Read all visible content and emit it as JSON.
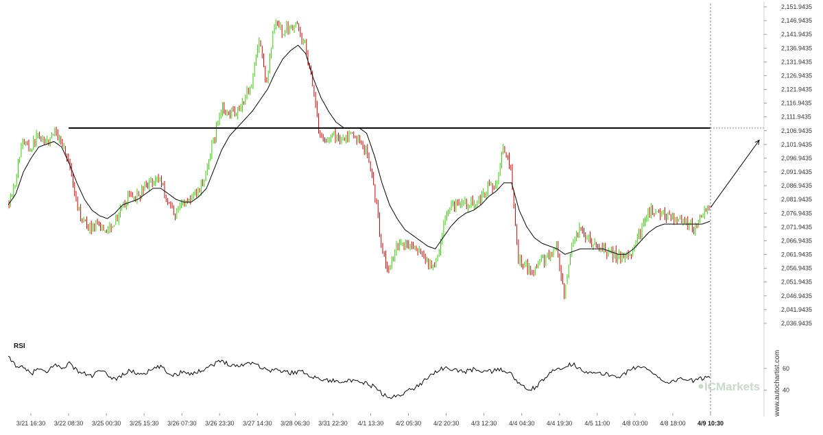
{
  "chart_data": [
    {
      "type": "candlestick",
      "y_axis_ticks": [
        "2,151.9435",
        "2,146.9435",
        "2,141.9435",
        "2,136.9435",
        "2,131.9435",
        "2,126.9435",
        "2,121.9435",
        "2,116.9435",
        "2,111.9435",
        "2,106.9435",
        "2,101.9435",
        "2,096.9435",
        "2,091.9435",
        "2,086.9435",
        "2,081.9435",
        "2,076.9435",
        "2,071.9435",
        "2,066.9435",
        "2,061.9435",
        "2,056.9435",
        "2,051.9435",
        "2,046.9435",
        "2,041.9435",
        "2,036.9435"
      ],
      "ylim": [
        2034.9435,
        2152.4435
      ],
      "x_axis_ticks": [
        "3/21 16:30",
        "3/22 08:30",
        "3/25 00:30",
        "3/25 15:30",
        "3/26 07:30",
        "3/26 23:30",
        "3/27 14:30",
        "3/28 06:30",
        "3/31 22:30",
        "4/1 13:30",
        "4/2 05:30",
        "4/2 20:30",
        "4/3 12:30",
        "4/4 04:30",
        "4/4 19:30",
        "4/5 11:00",
        "4/8 03:00",
        "4/8 18:00",
        "4/9 10:30"
      ],
      "x_axis_current": "4/9 10:30",
      "resistance_level": 2107.9,
      "projection": {
        "from": 2079.0,
        "to": 2103.5
      },
      "up_color": "#33cc00",
      "down_color": "#cc0000",
      "ma_color": "#000000",
      "close_path": [
        [
          0,
          2080.0
        ],
        [
          5,
          2088
        ],
        [
          10,
          2104
        ],
        [
          15,
          2100
        ],
        [
          20,
          2106
        ],
        [
          25,
          2102
        ],
        [
          30,
          2106
        ],
        [
          35,
          2104
        ],
        [
          40,
          2096
        ],
        [
          45,
          2080
        ],
        [
          50,
          2073
        ],
        [
          55,
          2072
        ],
        [
          60,
          2072
        ],
        [
          65,
          2071
        ],
        [
          70,
          2074
        ],
        [
          75,
          2078
        ],
        [
          80,
          2084
        ],
        [
          85,
          2083
        ],
        [
          90,
          2086
        ],
        [
          95,
          2089
        ],
        [
          100,
          2090
        ],
        [
          105,
          2081
        ],
        [
          110,
          2077
        ],
        [
          115,
          2081
        ],
        [
          120,
          2082
        ],
        [
          125,
          2085
        ],
        [
          130,
          2091
        ],
        [
          135,
          2103
        ],
        [
          140,
          2115
        ],
        [
          145,
          2114
        ],
        [
          150,
          2114
        ],
        [
          155,
          2118
        ],
        [
          160,
          2125
        ],
        [
          165,
          2140
        ],
        [
          170,
          2124
        ],
        [
          175,
          2146
        ],
        [
          180,
          2143
        ],
        [
          185,
          2145
        ],
        [
          190,
          2145
        ],
        [
          195,
          2138
        ],
        [
          200,
          2125
        ],
        [
          205,
          2104
        ],
        [
          210,
          2104
        ],
        [
          215,
          2105
        ],
        [
          220,
          2104
        ],
        [
          225,
          2105
        ],
        [
          230,
          2104
        ],
        [
          235,
          2100
        ],
        [
          240,
          2088
        ],
        [
          245,
          2066
        ],
        [
          250,
          2055
        ],
        [
          255,
          2066
        ],
        [
          260,
          2066
        ],
        [
          265,
          2065
        ],
        [
          270,
          2062
        ],
        [
          275,
          2060
        ],
        [
          280,
          2056
        ],
        [
          285,
          2070
        ],
        [
          290,
          2080
        ],
        [
          295,
          2081
        ],
        [
          300,
          2080
        ],
        [
          305,
          2081
        ],
        [
          310,
          2082
        ],
        [
          315,
          2086
        ],
        [
          320,
          2087
        ],
        [
          325,
          2101
        ],
        [
          330,
          2092
        ],
        [
          335,
          2060
        ],
        [
          340,
          2058
        ],
        [
          345,
          2056
        ],
        [
          350,
          2060
        ],
        [
          355,
          2061
        ],
        [
          360,
          2064
        ],
        [
          365,
          2046
        ],
        [
          370,
          2064
        ],
        [
          375,
          2071
        ],
        [
          380,
          2068
        ],
        [
          385,
          2065
        ],
        [
          390,
          2064
        ],
        [
          395,
          2063
        ],
        [
          400,
          2061
        ],
        [
          405,
          2061
        ],
        [
          410,
          2063
        ],
        [
          415,
          2070
        ],
        [
          420,
          2078
        ],
        [
          425,
          2078
        ],
        [
          430,
          2077
        ],
        [
          435,
          2075
        ],
        [
          440,
          2075
        ],
        [
          445,
          2074
        ],
        [
          450,
          2071
        ],
        [
          455,
          2076
        ],
        [
          460,
          2079
        ]
      ],
      "ma_path": [
        [
          0,
          2080.0
        ],
        [
          5,
          2084
        ],
        [
          10,
          2092
        ],
        [
          15,
          2097
        ],
        [
          20,
          2101
        ],
        [
          25,
          2102
        ],
        [
          30,
          2103
        ],
        [
          35,
          2101
        ],
        [
          40,
          2095
        ],
        [
          45,
          2088
        ],
        [
          50,
          2082
        ],
        [
          55,
          2078
        ],
        [
          60,
          2076
        ],
        [
          65,
          2075
        ],
        [
          70,
          2077
        ],
        [
          75,
          2080
        ],
        [
          80,
          2081
        ],
        [
          85,
          2082
        ],
        [
          90,
          2084
        ],
        [
          95,
          2086
        ],
        [
          100,
          2086
        ],
        [
          105,
          2084
        ],
        [
          110,
          2082
        ],
        [
          115,
          2081
        ],
        [
          120,
          2081
        ],
        [
          125,
          2083
        ],
        [
          130,
          2086
        ],
        [
          135,
          2093
        ],
        [
          140,
          2100
        ],
        [
          145,
          2105
        ],
        [
          150,
          2108
        ],
        [
          155,
          2111
        ],
        [
          160,
          2114
        ],
        [
          165,
          2118
        ],
        [
          170,
          2122
        ],
        [
          175,
          2128
        ],
        [
          180,
          2133
        ],
        [
          185,
          2136
        ],
        [
          190,
          2138
        ],
        [
          195,
          2135
        ],
        [
          200,
          2126
        ],
        [
          205,
          2119
        ],
        [
          210,
          2114
        ],
        [
          215,
          2110
        ],
        [
          220,
          2108
        ],
        [
          225,
          2108
        ],
        [
          230,
          2108
        ],
        [
          235,
          2106
        ],
        [
          240,
          2098
        ],
        [
          245,
          2088
        ],
        [
          250,
          2080
        ],
        [
          255,
          2075
        ],
        [
          260,
          2071
        ],
        [
          265,
          2069
        ],
        [
          270,
          2067
        ],
        [
          275,
          2065
        ],
        [
          280,
          2064
        ],
        [
          285,
          2068
        ],
        [
          290,
          2072
        ],
        [
          295,
          2075
        ],
        [
          300,
          2077
        ],
        [
          305,
          2078
        ],
        [
          310,
          2080
        ],
        [
          315,
          2083
        ],
        [
          320,
          2085
        ],
        [
          325,
          2088
        ],
        [
          330,
          2088
        ],
        [
          335,
          2078
        ],
        [
          340,
          2072
        ],
        [
          345,
          2068
        ],
        [
          350,
          2066
        ],
        [
          355,
          2065
        ],
        [
          360,
          2064
        ],
        [
          365,
          2062
        ],
        [
          370,
          2063
        ],
        [
          375,
          2064
        ],
        [
          380,
          2064
        ],
        [
          385,
          2064
        ],
        [
          390,
          2064
        ],
        [
          395,
          2063
        ],
        [
          400,
          2062
        ],
        [
          405,
          2062
        ],
        [
          410,
          2064
        ],
        [
          415,
          2067
        ],
        [
          420,
          2070
        ],
        [
          425,
          2072
        ],
        [
          430,
          2073
        ],
        [
          435,
          2073
        ],
        [
          440,
          2073
        ],
        [
          445,
          2073
        ],
        [
          450,
          2073
        ],
        [
          455,
          2073
        ],
        [
          460,
          2074
        ]
      ]
    },
    {
      "type": "line",
      "title": "RSI",
      "y_axis_ticks": [
        "60",
        "40"
      ],
      "ylim": [
        27,
        75
      ],
      "line_color": "#000000",
      "rsi_path": [
        [
          0,
          70
        ],
        [
          5,
          63
        ],
        [
          10,
          60
        ],
        [
          15,
          55
        ],
        [
          20,
          60
        ],
        [
          25,
          55
        ],
        [
          30,
          64
        ],
        [
          35,
          60
        ],
        [
          40,
          65
        ],
        [
          45,
          58
        ],
        [
          50,
          55
        ],
        [
          55,
          53
        ],
        [
          60,
          58
        ],
        [
          65,
          54
        ],
        [
          70,
          50
        ],
        [
          75,
          54
        ],
        [
          80,
          58
        ],
        [
          85,
          55
        ],
        [
          90,
          56
        ],
        [
          95,
          59
        ],
        [
          100,
          62
        ],
        [
          105,
          55
        ],
        [
          110,
          54
        ],
        [
          115,
          58
        ],
        [
          120,
          55
        ],
        [
          125,
          57
        ],
        [
          130,
          61
        ],
        [
          135,
          64
        ],
        [
          140,
          67
        ],
        [
          145,
          64
        ],
        [
          150,
          62
        ],
        [
          155,
          64
        ],
        [
          160,
          66
        ],
        [
          165,
          62
        ],
        [
          170,
          58
        ],
        [
          175,
          59
        ],
        [
          180,
          57
        ],
        [
          185,
          56
        ],
        [
          190,
          57
        ],
        [
          195,
          56
        ],
        [
          200,
          52
        ],
        [
          205,
          50
        ],
        [
          210,
          49
        ],
        [
          215,
          48
        ],
        [
          220,
          49
        ],
        [
          225,
          48
        ],
        [
          230,
          47
        ],
        [
          235,
          46
        ],
        [
          240,
          43
        ],
        [
          245,
          37
        ],
        [
          250,
          32
        ],
        [
          255,
          35
        ],
        [
          260,
          38
        ],
        [
          265,
          41
        ],
        [
          270,
          45
        ],
        [
          275,
          52
        ],
        [
          280,
          57
        ],
        [
          285,
          60
        ],
        [
          290,
          59
        ],
        [
          295,
          58
        ],
        [
          300,
          57
        ],
        [
          305,
          59
        ],
        [
          310,
          58
        ],
        [
          315,
          57
        ],
        [
          320,
          58
        ],
        [
          325,
          59
        ],
        [
          330,
          54
        ],
        [
          335,
          46
        ],
        [
          340,
          40
        ],
        [
          345,
          42
        ],
        [
          350,
          48
        ],
        [
          355,
          55
        ],
        [
          360,
          60
        ],
        [
          365,
          62
        ],
        [
          370,
          64
        ],
        [
          375,
          60
        ],
        [
          380,
          56
        ],
        [
          385,
          55
        ],
        [
          390,
          55
        ],
        [
          395,
          54
        ],
        [
          400,
          52
        ],
        [
          405,
          56
        ],
        [
          410,
          60
        ],
        [
          415,
          62
        ],
        [
          420,
          58
        ],
        [
          425,
          54
        ],
        [
          430,
          48
        ],
        [
          435,
          47
        ],
        [
          440,
          51
        ],
        [
          445,
          50
        ],
        [
          450,
          48
        ],
        [
          455,
          51
        ],
        [
          460,
          52
        ]
      ]
    }
  ],
  "watermark": {
    "text": "ICMarkets"
  },
  "side_credit": {
    "text": "www.autochartist.com"
  }
}
